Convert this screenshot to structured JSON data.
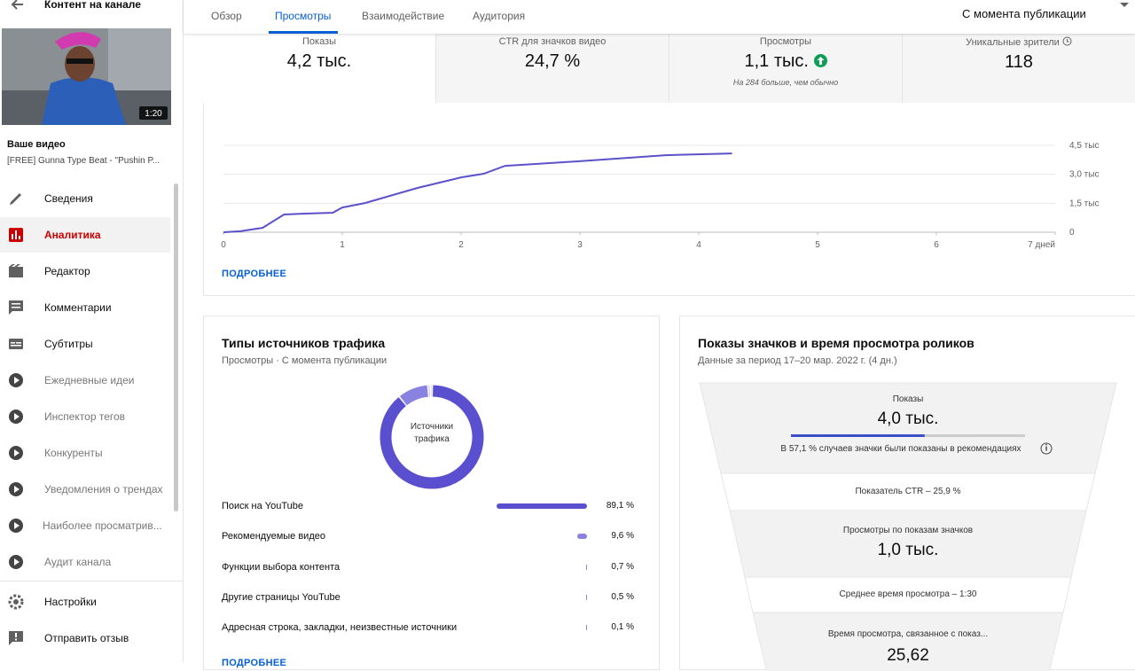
{
  "sidebar": {
    "title": "Контент на канале",
    "duration": "1:20",
    "video_heading": "Ваше видео",
    "video_title": "[FREE] Gunna Type Beat - \"Pushin P...",
    "menu": [
      "Сведения",
      "Аналитика",
      "Редактор",
      "Комментарии",
      "Субтитры"
    ],
    "extensions": [
      "Ежедневные идеи",
      "Инспектор тегов",
      "Конкуренты",
      "Уведомления о трендах",
      "Наиболее просматрив...",
      "Аудит канала"
    ],
    "footer": [
      "Настройки",
      "Отправить отзыв"
    ]
  },
  "tabs": [
    "Обзор",
    "Просмотры",
    "Взаимодействие",
    "Аудитория"
  ],
  "period": "С момента публикации",
  "metrics": [
    {
      "label": "Показы",
      "value": "4,2 тыс."
    },
    {
      "label": "CTR для значков видео",
      "value": "24,7 %"
    },
    {
      "label": "Просмотры",
      "value": "1,1 тыс.",
      "note": "На 284 больше, чем обычно"
    },
    {
      "label": "Уникальные зрители",
      "value": "118"
    }
  ],
  "chart_data": {
    "type": "line",
    "x": [
      0,
      0.14,
      0.33,
      0.51,
      0.66,
      0.92,
      1.0,
      1.19,
      1.63,
      2.0,
      2.19,
      2.37,
      2.97,
      3.72,
      4.28
    ],
    "values": [
      0,
      50,
      230,
      920,
      960,
      1010,
      1280,
      1510,
      2290,
      2840,
      3030,
      3440,
      3670,
      3990,
      4080
    ],
    "color": "#5b51c9",
    "xlim": [
      0,
      7
    ],
    "ylim": [
      0,
      4500
    ],
    "xticks": [
      0,
      1,
      2,
      3,
      4,
      5,
      6,
      {
        "value": 7,
        "label": "7 дней"
      }
    ],
    "yticks": [
      0,
      {
        "value": 1500,
        "label": "1,5 тыс"
      },
      {
        "value": 3000,
        "label": "3,0 тыс"
      },
      {
        "value": 4500,
        "label": "4,5 тыс"
      }
    ],
    "grid": true
  },
  "details_link": "ПОДРОБНЕЕ",
  "traffic": {
    "title": "Типы источников трафика",
    "subtitle": "Просмотры · С момента публикации",
    "center_label": "Источники трафика",
    "categories": [
      "Поиск на YouTube",
      "Рекомендуемые видео",
      "Функции выбора контента",
      "Другие страницы YouTube",
      "Адресная строка, закладки, неизвестные источники"
    ],
    "values": [
      89.1,
      9.6,
      0.7,
      0.5,
      0.1
    ],
    "value_labels": [
      "89,1 %",
      "9,6 %",
      "0,7 %",
      "0,5 %",
      "0,1 %"
    ],
    "colors": [
      "#5a4fcf",
      "#8a82e0",
      "#b3adeb",
      "#cfcbf3",
      "#e3e0f8"
    ]
  },
  "funnel": {
    "title": "Показы значков и время просмотра роликов",
    "subtitle": "Данные за период 17–20 мар. 2022 г. (4 дн.)",
    "impressions_label": "Показы",
    "impressions_value": "4,0 тыс.",
    "recommended_share": 57.1,
    "recommended_text": "В 57,1 % случаев значки были показаны в рекомендациях",
    "ctr_text": "Показатель CTR – 25,9 %",
    "views_label": "Просмотры по показам значков",
    "views_value": "1,0 тыс.",
    "avg_text": "Среднее время просмотра – 1:30",
    "watch_label": "Время просмотра, связанное с показ...",
    "watch_value": "25,62"
  }
}
